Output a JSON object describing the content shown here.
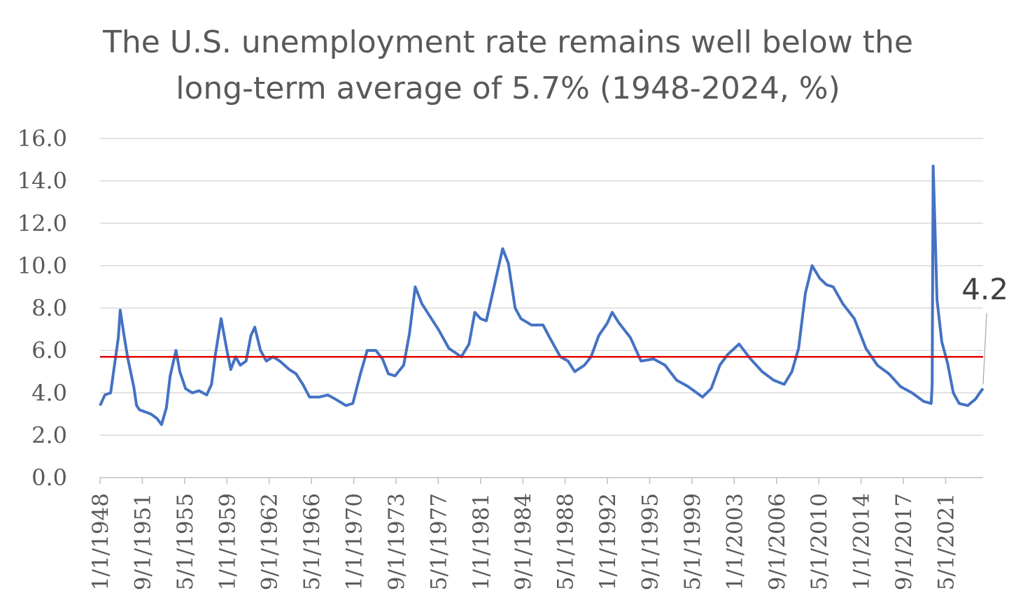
{
  "chart_data": {
    "type": "line",
    "title_lines": [
      "The U.S. unemployment rate remains well below the",
      "long-term average of 5.7% (1948-2024, %)"
    ],
    "xlabel": "",
    "ylabel": "",
    "ylim": [
      0,
      16
    ],
    "y_ticks": [
      "0.0",
      "2.0",
      "4.0",
      "6.0",
      "8.0",
      "10.0",
      "12.0",
      "14.0",
      "16.0"
    ],
    "x_range": [
      "1/1/1948",
      "8/1/2024"
    ],
    "x_tick_labels": [
      "1/1/1948",
      "9/1/1951",
      "5/1/1955",
      "1/1/1959",
      "9/1/1962",
      "5/1/1966",
      "1/1/1970",
      "9/1/1973",
      "5/1/1977",
      "1/1/1981",
      "9/1/1984",
      "5/1/1988",
      "1/1/1992",
      "9/1/1995",
      "5/1/1999",
      "1/1/2003",
      "9/1/2006",
      "5/1/2010",
      "1/1/2014",
      "9/1/2017",
      "5/1/2021"
    ],
    "grid": "horizontal",
    "legend": "none",
    "series": [
      {
        "color": "#4472C4",
        "points": [
          [
            "1948-01",
            3.4
          ],
          [
            "1948-06",
            3.9
          ],
          [
            "1948-12",
            4.0
          ],
          [
            "1949-04",
            5.3
          ],
          [
            "1949-08",
            6.6
          ],
          [
            "1949-10",
            7.9
          ],
          [
            "1950-02",
            6.7
          ],
          [
            "1950-06",
            5.6
          ],
          [
            "1950-12",
            4.3
          ],
          [
            "1951-03",
            3.4
          ],
          [
            "1951-06",
            3.2
          ],
          [
            "1951-12",
            3.1
          ],
          [
            "1952-06",
            3.0
          ],
          [
            "1952-12",
            2.8
          ],
          [
            "1953-05",
            2.5
          ],
          [
            "1953-10",
            3.3
          ],
          [
            "1954-02",
            4.8
          ],
          [
            "1954-08",
            6.0
          ],
          [
            "1954-12",
            5.0
          ],
          [
            "1955-06",
            4.2
          ],
          [
            "1956-01",
            4.0
          ],
          [
            "1956-08",
            4.1
          ],
          [
            "1957-04",
            3.9
          ],
          [
            "1957-09",
            4.4
          ],
          [
            "1958-01",
            5.8
          ],
          [
            "1958-07",
            7.5
          ],
          [
            "1959-01",
            6.0
          ],
          [
            "1959-05",
            5.1
          ],
          [
            "1959-10",
            5.7
          ],
          [
            "1960-03",
            5.3
          ],
          [
            "1960-09",
            5.5
          ],
          [
            "1961-02",
            6.7
          ],
          [
            "1961-06",
            7.1
          ],
          [
            "1961-12",
            6.0
          ],
          [
            "1962-06",
            5.5
          ],
          [
            "1963-01",
            5.7
          ],
          [
            "1963-08",
            5.5
          ],
          [
            "1964-06",
            5.1
          ],
          [
            "1965-01",
            4.9
          ],
          [
            "1965-08",
            4.4
          ],
          [
            "1966-03",
            3.8
          ],
          [
            "1967-01",
            3.8
          ],
          [
            "1967-10",
            3.9
          ],
          [
            "1968-06",
            3.7
          ],
          [
            "1969-05",
            3.4
          ],
          [
            "1969-12",
            3.5
          ],
          [
            "1970-08",
            4.9
          ],
          [
            "1971-03",
            6.0
          ],
          [
            "1971-12",
            6.0
          ],
          [
            "1972-07",
            5.6
          ],
          [
            "1973-01",
            4.9
          ],
          [
            "1973-08",
            4.8
          ],
          [
            "1974-05",
            5.3
          ],
          [
            "1974-11",
            6.8
          ],
          [
            "1975-05",
            9.0
          ],
          [
            "1975-12",
            8.2
          ],
          [
            "1976-07",
            7.7
          ],
          [
            "1977-05",
            7.0
          ],
          [
            "1978-04",
            6.1
          ],
          [
            "1979-05",
            5.7
          ],
          [
            "1980-01",
            6.3
          ],
          [
            "1980-07",
            7.8
          ],
          [
            "1981-01",
            7.5
          ],
          [
            "1981-07",
            7.4
          ],
          [
            "1982-01",
            8.6
          ],
          [
            "1982-07",
            9.8
          ],
          [
            "1982-12",
            10.8
          ],
          [
            "1983-06",
            10.1
          ],
          [
            "1984-01",
            8.0
          ],
          [
            "1984-07",
            7.5
          ],
          [
            "1985-06",
            7.2
          ],
          [
            "1986-06",
            7.2
          ],
          [
            "1987-01",
            6.6
          ],
          [
            "1987-12",
            5.7
          ],
          [
            "1988-08",
            5.5
          ],
          [
            "1989-03",
            5.0
          ],
          [
            "1990-01",
            5.3
          ],
          [
            "1990-08",
            5.7
          ],
          [
            "1991-04",
            6.7
          ],
          [
            "1992-01",
            7.3
          ],
          [
            "1992-06",
            7.8
          ],
          [
            "1993-01",
            7.3
          ],
          [
            "1994-01",
            6.6
          ],
          [
            "1994-12",
            5.5
          ],
          [
            "1996-01",
            5.6
          ],
          [
            "1997-01",
            5.3
          ],
          [
            "1998-01",
            4.6
          ],
          [
            "1999-01",
            4.3
          ],
          [
            "2000-04",
            3.8
          ],
          [
            "2001-01",
            4.2
          ],
          [
            "2001-10",
            5.3
          ],
          [
            "2002-06",
            5.8
          ],
          [
            "2003-06",
            6.3
          ],
          [
            "2004-06",
            5.6
          ],
          [
            "2005-06",
            5.0
          ],
          [
            "2006-06",
            4.6
          ],
          [
            "2007-05",
            4.4
          ],
          [
            "2008-01",
            5.0
          ],
          [
            "2008-08",
            6.1
          ],
          [
            "2009-03",
            8.7
          ],
          [
            "2009-10",
            10.0
          ],
          [
            "2010-06",
            9.4
          ],
          [
            "2011-01",
            9.1
          ],
          [
            "2011-08",
            9.0
          ],
          [
            "2012-06",
            8.2
          ],
          [
            "2013-06",
            7.5
          ],
          [
            "2014-06",
            6.1
          ],
          [
            "2015-06",
            5.3
          ],
          [
            "2016-06",
            4.9
          ],
          [
            "2017-06",
            4.3
          ],
          [
            "2018-06",
            4.0
          ],
          [
            "2019-06",
            3.6
          ],
          [
            "2020-02",
            3.5
          ],
          [
            "2020-03",
            4.4
          ],
          [
            "2020-04",
            14.7
          ],
          [
            "2020-05",
            13.2
          ],
          [
            "2020-08",
            8.4
          ],
          [
            "2021-01",
            6.4
          ],
          [
            "2021-07",
            5.4
          ],
          [
            "2022-01",
            4.0
          ],
          [
            "2022-07",
            3.5
          ],
          [
            "2023-04",
            3.4
          ],
          [
            "2023-12",
            3.7
          ],
          [
            "2024-06",
            4.1
          ],
          [
            "2024-08",
            4.2
          ]
        ]
      },
      {
        "color": "#E00000",
        "points": [
          [
            "1948-01",
            5.7
          ],
          [
            "2024-08",
            5.7
          ]
        ]
      }
    ],
    "annotations": [
      {
        "text": "4.2",
        "at": [
          "2024-08",
          4.2
        ]
      }
    ]
  }
}
